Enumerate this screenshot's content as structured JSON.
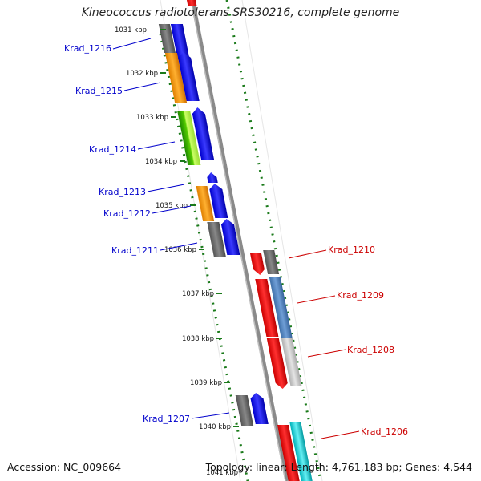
{
  "title": "Kineococcus radiotolerans SRS30216, complete genome",
  "footer": {
    "accession": "Accession: NC_009664",
    "summary": "Topology: linear; Length: 4,761,183 bp; Genes: 4,544"
  },
  "ticks": [
    "1031 kbp",
    "1032 kbp",
    "1033 kbp",
    "1034 kbp",
    "1035 kbp",
    "1036 kbp",
    "1037 kbp",
    "1038 kbp",
    "1039 kbp",
    "1040 kbp",
    "1041 kbp"
  ],
  "genes_left": [
    {
      "label": "Krad_1216",
      "color": "#0000cc"
    },
    {
      "label": "Krad_1215",
      "color": "#0000cc"
    },
    {
      "label": "Krad_1214",
      "color": "#0000cc"
    },
    {
      "label": "Krad_1213",
      "color": "#0000cc"
    },
    {
      "label": "Krad_1212",
      "color": "#0000cc"
    },
    {
      "label": "Krad_1211",
      "color": "#0000cc"
    },
    {
      "label": "Krad_1207",
      "color": "#0000cc"
    }
  ],
  "genes_right": [
    {
      "label": "Krad_1210",
      "color": "#cc0000"
    },
    {
      "label": "Krad_1209",
      "color": "#cc0000"
    },
    {
      "label": "Krad_1208",
      "color": "#cc0000"
    },
    {
      "label": "Krad_1206",
      "color": "#cc0000"
    }
  ],
  "colors": {
    "backbone": "#808080",
    "dots": "#1a7a1a",
    "forward_strand": "#0000ff",
    "reverse_strand": "#ff0000",
    "gray": "#6e6e6e",
    "orange": "#ff9a00",
    "green": "#33aa00",
    "steelblue": "#4a7fc0",
    "lightgray": "#c8c8c8",
    "cyan": "#00d0d8"
  }
}
